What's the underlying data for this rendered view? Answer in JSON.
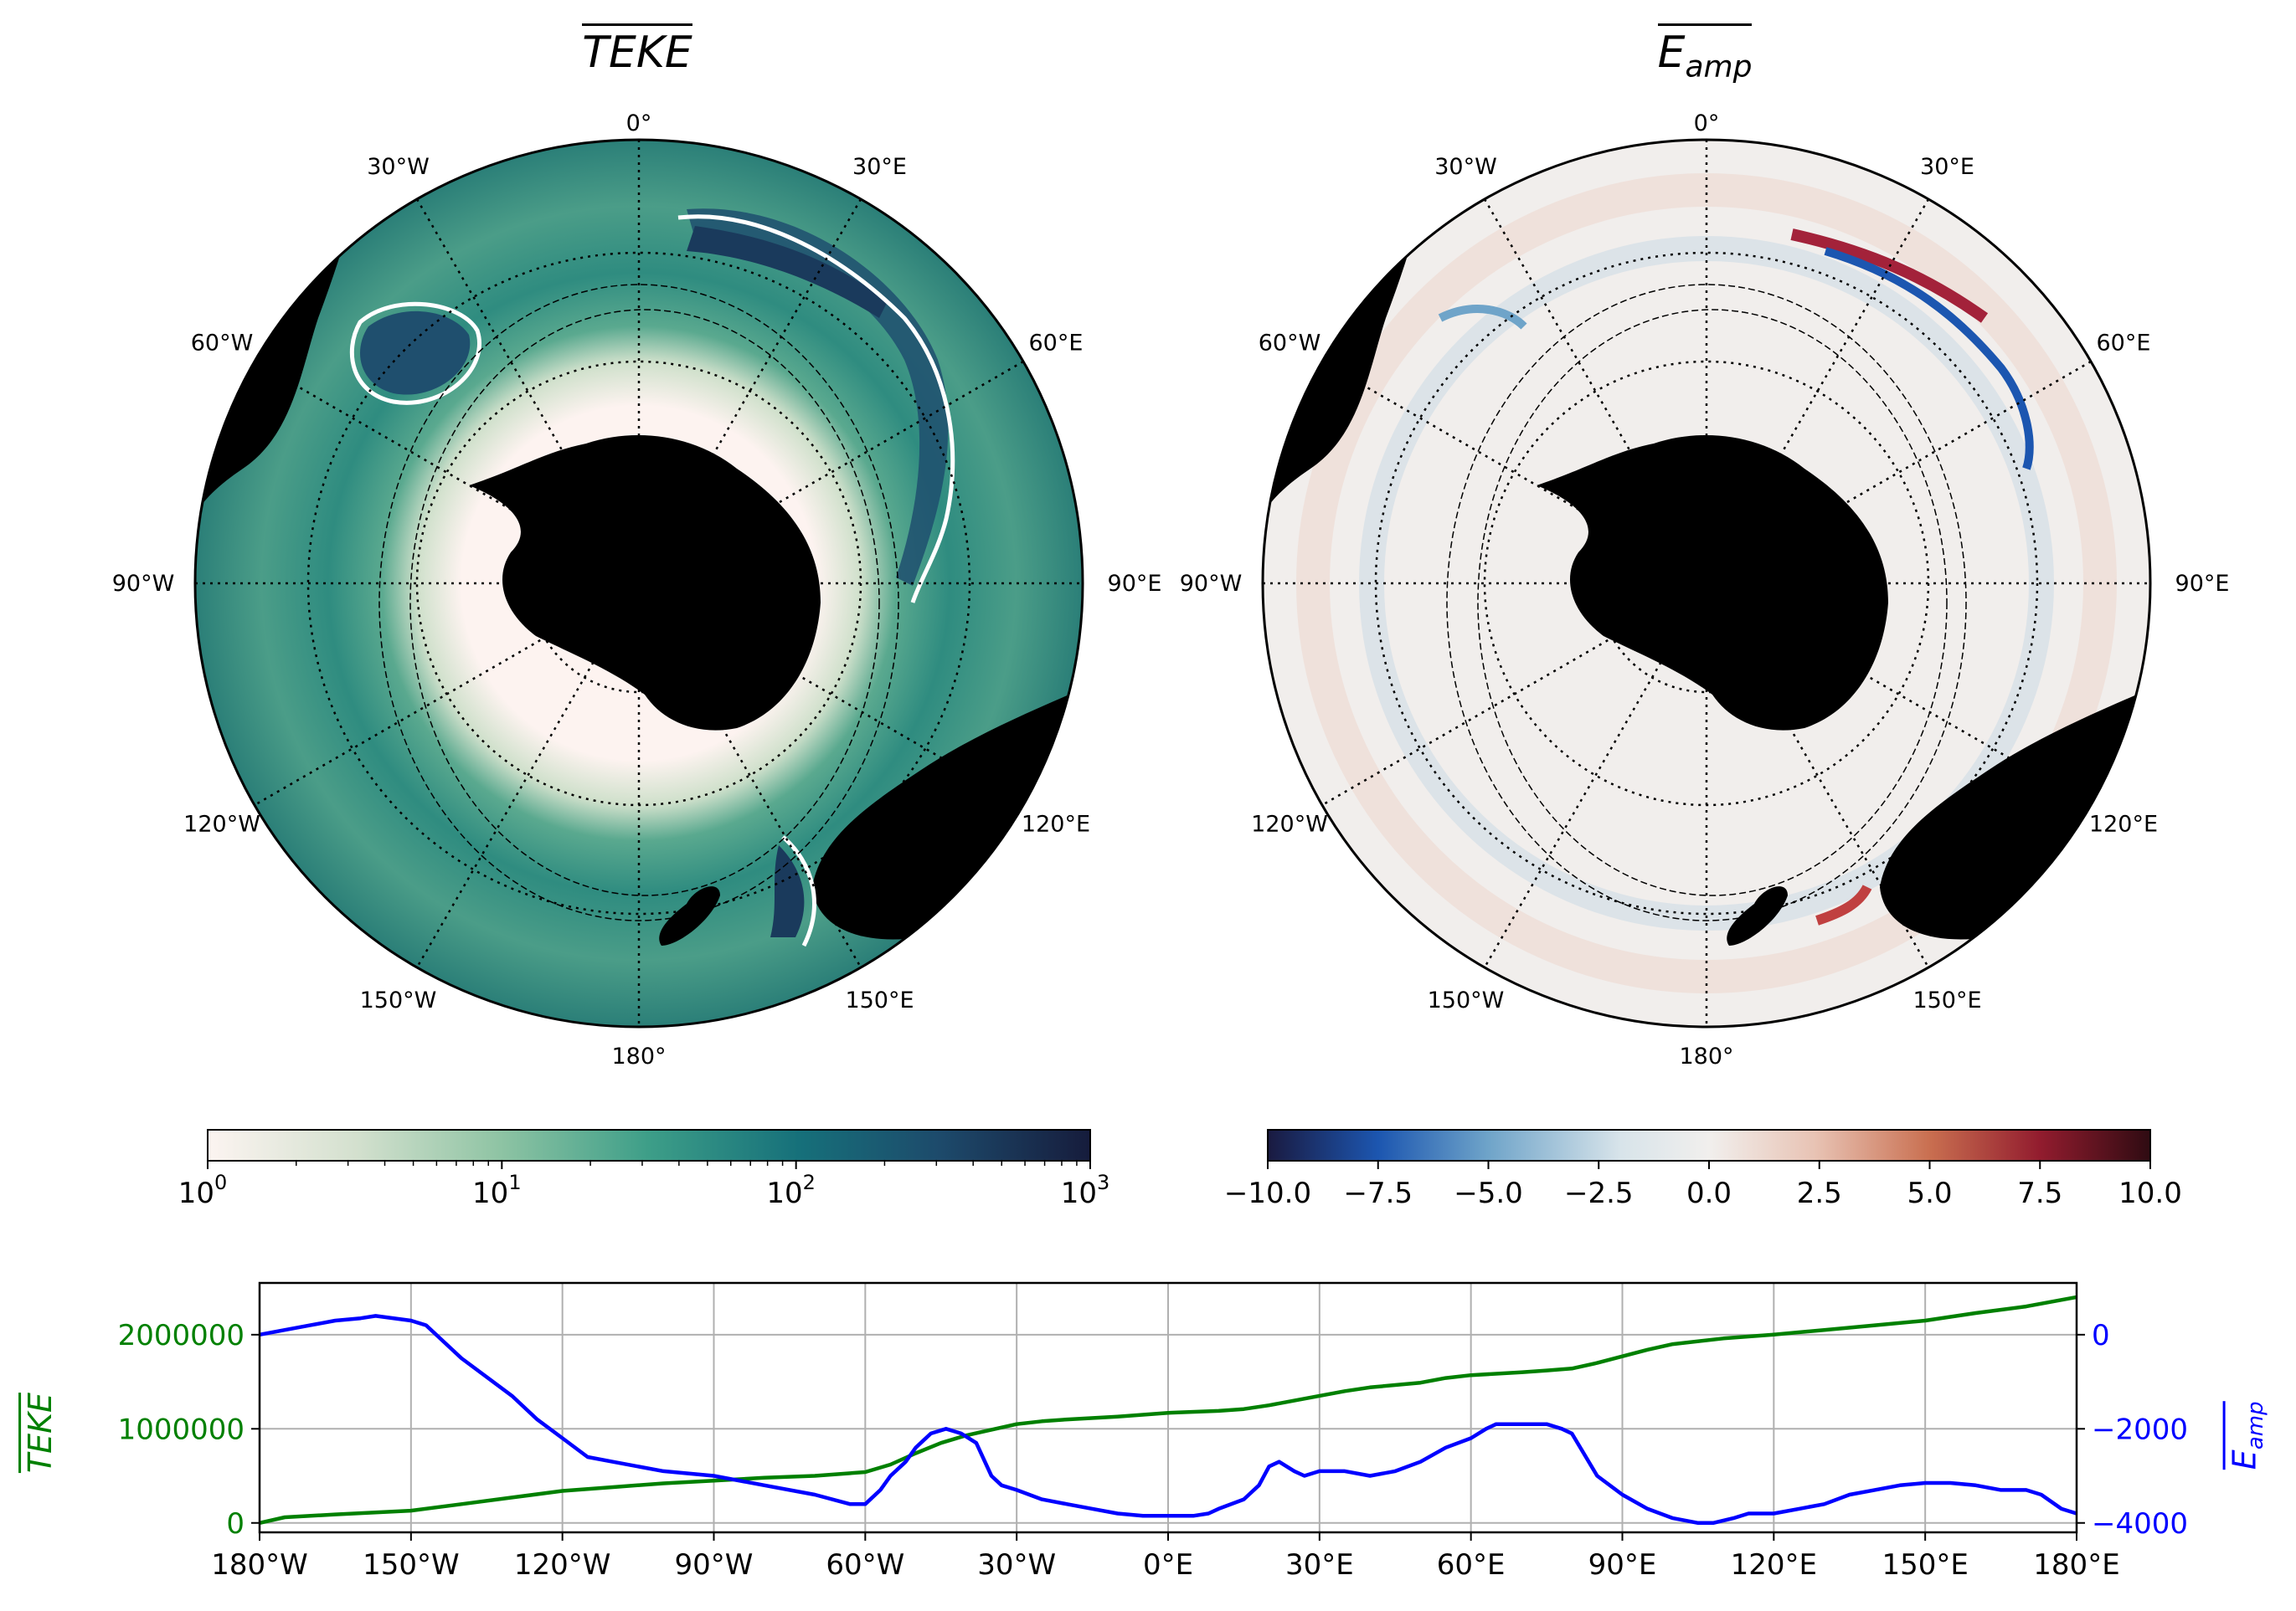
{
  "maps": [
    {
      "title_main": "TEKE",
      "title_sub": "",
      "lon_labels": [
        "0°",
        "30°E",
        "60°E",
        "90°E",
        "120°E",
        "150°E",
        "180°",
        "150°W",
        "120°W",
        "90°W",
        "60°W",
        "30°W"
      ],
      "colorbar": {
        "scale": "log",
        "min": 1,
        "max": 1000,
        "ticks": [
          "10",
          "10",
          "10",
          "10"
        ],
        "tick_exp": [
          "0",
          "1",
          "2",
          "3"
        ],
        "colors": [
          "#fcf4f1",
          "#d3e0ce",
          "#8fc4a4",
          "#3d9e88",
          "#16707a",
          "#1d4a6b",
          "#161c3c"
        ]
      },
      "colors": {
        "ocean_low": "#fdf3f0",
        "ocean_mid": "#4a9c86",
        "ocean_high": "#1a3a5c",
        "land": "#000000",
        "contour": "#ffffff"
      }
    },
    {
      "title_main": "E",
      "title_sub": "amp",
      "lon_labels": [
        "0°",
        "30°E",
        "60°E",
        "90°E",
        "120°E",
        "150°E",
        "180°",
        "150°W",
        "120°W",
        "90°W",
        "60°W",
        "30°W"
      ],
      "colorbar": {
        "scale": "linear",
        "min": -10,
        "max": 10,
        "ticks": [
          "−10.0",
          "−7.5",
          "−5.0",
          "−2.5",
          "0.0",
          "2.5",
          "5.0",
          "7.5",
          "10.0"
        ],
        "colors": [
          "#1a1a40",
          "#1c56b0",
          "#6fa4c9",
          "#d8e4ea",
          "#f1efed",
          "#e8c3b4",
          "#c96f50",
          "#921c2e",
          "#2f0b12"
        ]
      },
      "colors": {
        "ocean": "#f1eeec",
        "land": "#000000"
      }
    }
  ],
  "chart_data": {
    "type": "line",
    "x_tick_labels": [
      "180°W",
      "150°W",
      "120°W",
      "90°W",
      "60°W",
      "30°W",
      "0°E",
      "30°E",
      "60°E",
      "90°E",
      "120°E",
      "150°E",
      "180°E"
    ],
    "xlim": [
      -180,
      180
    ],
    "grid": true,
    "left_axis": {
      "label_main": "TEKE",
      "label_sub": "",
      "color": "#008000",
      "ylim": [
        -100000,
        2550000
      ],
      "ticks": [
        0,
        1000000,
        2000000
      ],
      "tick_labels": [
        "0",
        "1000000",
        "2000000"
      ]
    },
    "right_axis": {
      "label_main": "E",
      "label_sub": "amp",
      "color": "#0000ff",
      "ylim": [
        -4200,
        1100
      ],
      "ticks": [
        -4000,
        -2000,
        0
      ],
      "tick_labels": [
        "−4000",
        "−2000",
        "0"
      ]
    },
    "series": [
      {
        "axis": "left",
        "color": "#008000",
        "x": [
          -180,
          -175,
          -165,
          -150,
          -140,
          -130,
          -120,
          -110,
          -100,
          -90,
          -80,
          -70,
          -60,
          -55,
          -50,
          -45,
          -40,
          -35,
          -30,
          -25,
          -20,
          -10,
          0,
          10,
          15,
          20,
          25,
          30,
          35,
          40,
          50,
          55,
          60,
          70,
          75,
          80,
          85,
          90,
          95,
          100,
          110,
          120,
          130,
          140,
          150,
          160,
          170,
          180
        ],
        "values": [
          0,
          60000,
          90000,
          130000,
          200000,
          270000,
          340000,
          380000,
          420000,
          450000,
          480000,
          500000,
          540000,
          620000,
          740000,
          850000,
          930000,
          990000,
          1050000,
          1080000,
          1100000,
          1130000,
          1170000,
          1190000,
          1210000,
          1250000,
          1300000,
          1350000,
          1400000,
          1440000,
          1490000,
          1540000,
          1570000,
          1600000,
          1620000,
          1640000,
          1700000,
          1770000,
          1840000,
          1900000,
          1960000,
          2000000,
          2050000,
          2100000,
          2150000,
          2230000,
          2300000,
          2400000
        ]
      },
      {
        "axis": "right",
        "color": "#0000ff",
        "x": [
          -180,
          -175,
          -170,
          -165,
          -160,
          -157,
          -150,
          -147,
          -140,
          -130,
          -125,
          -120,
          -115,
          -110,
          -100,
          -90,
          -80,
          -70,
          -63,
          -60,
          -57,
          -55,
          -52,
          -50,
          -47,
          -44,
          -41,
          -38,
          -35,
          -33,
          -30,
          -25,
          -20,
          -15,
          -10,
          -5,
          0,
          5,
          8,
          10,
          15,
          18,
          20,
          22,
          25,
          27,
          30,
          35,
          40,
          45,
          50,
          55,
          60,
          63,
          65,
          68,
          72,
          75,
          78,
          80,
          85,
          90,
          95,
          100,
          105,
          108,
          112,
          115,
          120,
          125,
          130,
          135,
          140,
          145,
          150,
          155,
          160,
          165,
          170,
          173,
          177,
          180
        ],
        "values": [
          0,
          100,
          200,
          300,
          350,
          400,
          300,
          200,
          -500,
          -1300,
          -1800,
          -2200,
          -2600,
          -2700,
          -2900,
          -3000,
          -3200,
          -3400,
          -3600,
          -3600,
          -3300,
          -3000,
          -2700,
          -2400,
          -2100,
          -2000,
          -2100,
          -2300,
          -3000,
          -3200,
          -3300,
          -3500,
          -3600,
          -3700,
          -3800,
          -3850,
          -3850,
          -3850,
          -3800,
          -3700,
          -3500,
          -3200,
          -2800,
          -2700,
          -2900,
          -3000,
          -2900,
          -2900,
          -3000,
          -2900,
          -2700,
          -2400,
          -2200,
          -2000,
          -1900,
          -1900,
          -1900,
          -1900,
          -2000,
          -2100,
          -3000,
          -3400,
          -3700,
          -3900,
          -4000,
          -4000,
          -3900,
          -3800,
          -3800,
          -3700,
          -3600,
          -3400,
          -3300,
          -3200,
          -3150,
          -3150,
          -3200,
          -3300,
          -3300,
          -3400,
          -3700,
          -3800
        ]
      }
    ]
  }
}
